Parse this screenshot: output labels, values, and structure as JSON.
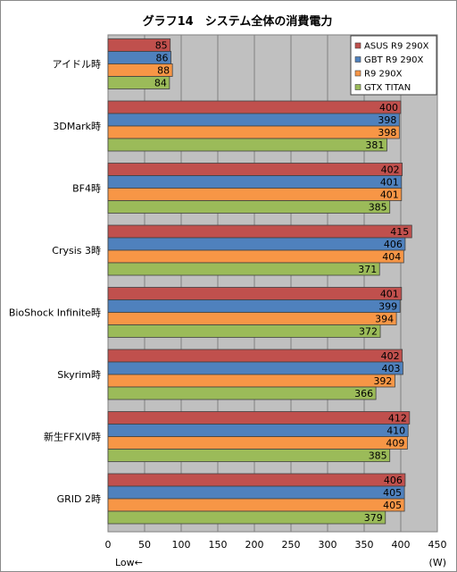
{
  "chart_data": {
    "type": "bar",
    "orientation": "horizontal",
    "title": "グラフ14　システム全体の消費電力",
    "xlabel_left": "Low←",
    "xlabel_right": "(W)",
    "xlim": [
      0,
      450
    ],
    "xticks": [
      0,
      50,
      100,
      150,
      200,
      250,
      300,
      350,
      400,
      450
    ],
    "grid": true,
    "legend_position": "top-right",
    "categories": [
      "アイドル時",
      "3DMark時",
      "BF4時",
      "Crysis 3時",
      "BioShock Infinite時",
      "Skyrim時",
      "新生FFXIV時",
      "GRID 2時"
    ],
    "series": [
      {
        "name": "ASUS R9 290X",
        "color": "#c0504d",
        "values": [
          85,
          400,
          402,
          415,
          401,
          402,
          412,
          406
        ]
      },
      {
        "name": "GBT R9 290X",
        "color": "#4f81bd",
        "values": [
          86,
          398,
          401,
          406,
          399,
          403,
          410,
          405
        ]
      },
      {
        "name": "R9 290X",
        "color": "#f79646",
        "values": [
          88,
          398,
          401,
          404,
          394,
          392,
          409,
          405
        ]
      },
      {
        "name": "GTX TITAN",
        "color": "#9bbb59",
        "values": [
          84,
          381,
          385,
          371,
          372,
          366,
          385,
          379
        ]
      }
    ]
  }
}
